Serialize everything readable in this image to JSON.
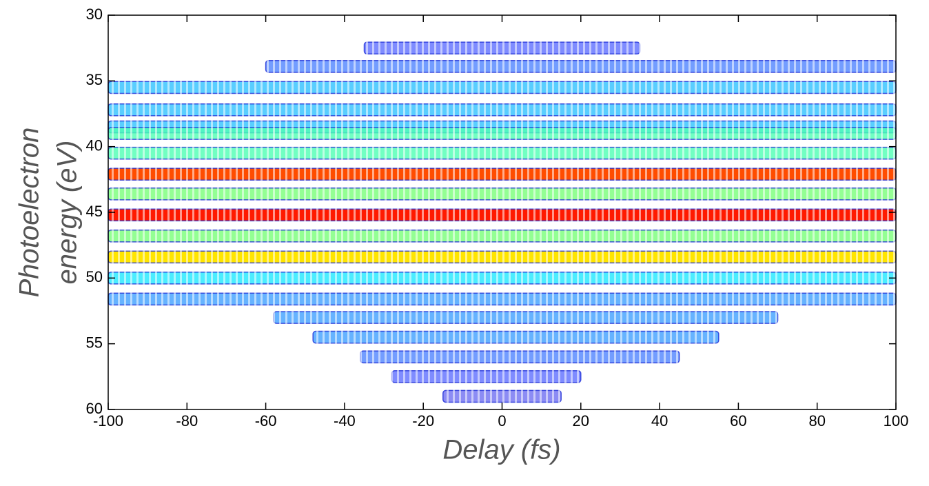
{
  "chart_data": {
    "type": "heatmap",
    "xlabel": "Delay (fs)",
    "ylabel": [
      "Photoelectron",
      "energy (eV)"
    ],
    "xlim": [
      -100,
      100
    ],
    "ylim": [
      30,
      60
    ],
    "xticks": [
      -100,
      -80,
      -60,
      -40,
      -20,
      0,
      20,
      40,
      60,
      80,
      100
    ],
    "yticks": [
      30,
      35,
      40,
      45,
      50,
      55,
      60
    ],
    "y_inverted": true,
    "colormap": "jet",
    "bands": {
      "energy": [
        32.5,
        33.9,
        35.5,
        37.2,
        38.5,
        39.0,
        40.5,
        42.1,
        43.6,
        45.2,
        46.8,
        48.4,
        50.0,
        51.6,
        53.0,
        54.5,
        56.0,
        57.5,
        59.0
      ],
      "delay_start": [
        -35,
        -60,
        -100,
        -100,
        -100,
        -100,
        -100,
        -100,
        -100,
        -100,
        -100,
        -100,
        -100,
        -100,
        -58,
        -48,
        -36,
        -28,
        -15
      ],
      "delay_end": [
        35,
        100,
        100,
        100,
        100,
        100,
        100,
        100,
        100,
        100,
        100,
        100,
        100,
        100,
        70,
        55,
        45,
        20,
        15
      ],
      "intensity": [
        0.15,
        0.2,
        0.3,
        0.3,
        0.3,
        0.45,
        0.45,
        0.8,
        0.5,
        0.85,
        0.5,
        0.65,
        0.35,
        0.25,
        0.25,
        0.25,
        0.2,
        0.15,
        0.1
      ]
    }
  }
}
